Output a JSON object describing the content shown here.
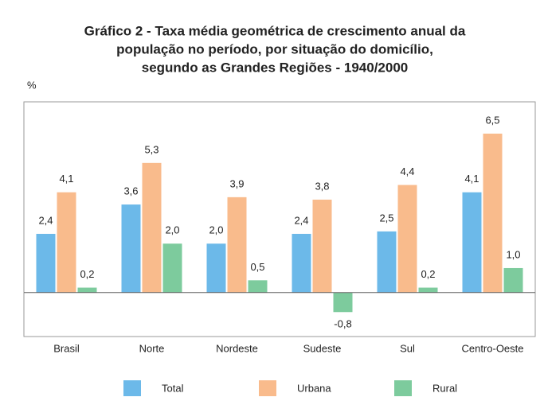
{
  "chart_data": {
    "type": "bar",
    "title": [
      "Gráfico 2 - Taxa média geométrica de crescimento anual da",
      "população no período, por situação do domicílio,",
      "segundo as Grandes Regiões - 1940/2000"
    ],
    "y_label": "%",
    "categories": [
      "Brasil",
      "Norte",
      "Nordeste",
      "Sudeste",
      "Sul",
      "Centro-Oeste"
    ],
    "series": [
      {
        "name": "Total",
        "color": "#6cb9e9",
        "values": [
          2.4,
          3.6,
          2.0,
          2.4,
          2.5,
          4.1
        ],
        "value_labels": [
          "2,4",
          "3,6",
          "2,0",
          "2,4",
          "2,5",
          "4,1"
        ]
      },
      {
        "name": "Urbana",
        "color": "#f9bb8c",
        "values": [
          4.1,
          5.3,
          3.9,
          3.8,
          4.4,
          6.5
        ],
        "value_labels": [
          "4,1",
          "5,3",
          "3,9",
          "3,8",
          "4,4",
          "6,5"
        ]
      },
      {
        "name": "Rural",
        "color": "#7dcb9d",
        "values": [
          0.2,
          2.0,
          0.5,
          -0.8,
          0.2,
          1.0
        ],
        "value_labels": [
          "0,2",
          "2,0",
          "0,5",
          "-0,8",
          "0,2",
          "1,0"
        ]
      }
    ],
    "ylim": [
      -1.8,
      7.8
    ]
  }
}
